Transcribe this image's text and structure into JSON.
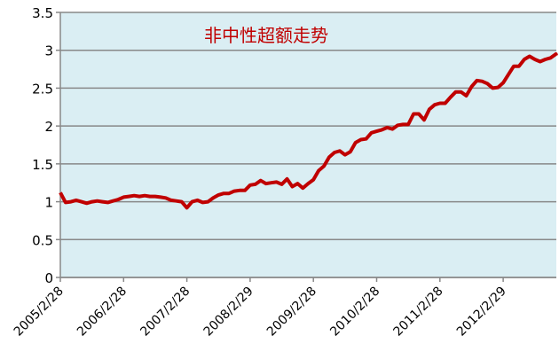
{
  "chart_data": {
    "type": "line",
    "title": "非中性超额走势",
    "xlabel": "",
    "ylabel": "",
    "ylim": [
      0,
      3.5
    ],
    "yticks": [
      "0",
      "0.5",
      "1",
      "1.5",
      "2",
      "2.5",
      "3",
      "3.5"
    ],
    "xticks": [
      "2005/2/28",
      "2006/2/28",
      "2007/2/28",
      "2008/2/29",
      "2009/2/28",
      "2010/2/28",
      "2011/2/28",
      "2012/2/29"
    ],
    "grid": "horizontal",
    "plot_background": "#daeef3",
    "line_color": "#c00000",
    "x_start": "2005-02",
    "x_step": "1 month",
    "values": [
      1.12,
      0.99,
      1.0,
      1.02,
      1.0,
      0.98,
      1.0,
      1.01,
      1.0,
      0.99,
      1.01,
      1.03,
      1.06,
      1.07,
      1.08,
      1.07,
      1.08,
      1.07,
      1.07,
      1.06,
      1.05,
      1.02,
      1.01,
      1.0,
      0.92,
      1.0,
      1.02,
      0.99,
      1.0,
      1.05,
      1.09,
      1.11,
      1.11,
      1.14,
      1.15,
      1.15,
      1.22,
      1.23,
      1.28,
      1.24,
      1.25,
      1.26,
      1.23,
      1.3,
      1.2,
      1.24,
      1.18,
      1.24,
      1.29,
      1.41,
      1.47,
      1.59,
      1.65,
      1.67,
      1.62,
      1.66,
      1.78,
      1.82,
      1.83,
      1.91,
      1.93,
      1.95,
      1.98,
      1.96,
      2.01,
      2.02,
      2.02,
      2.16,
      2.16,
      2.08,
      2.22,
      2.28,
      2.3,
      2.3,
      2.38,
      2.45,
      2.45,
      2.4,
      2.52,
      2.6,
      2.59,
      2.56,
      2.5,
      2.51,
      2.57,
      2.68,
      2.79,
      2.79,
      2.88,
      2.92,
      2.88,
      2.85,
      2.88,
      2.9,
      2.95,
      2.93
    ]
  }
}
